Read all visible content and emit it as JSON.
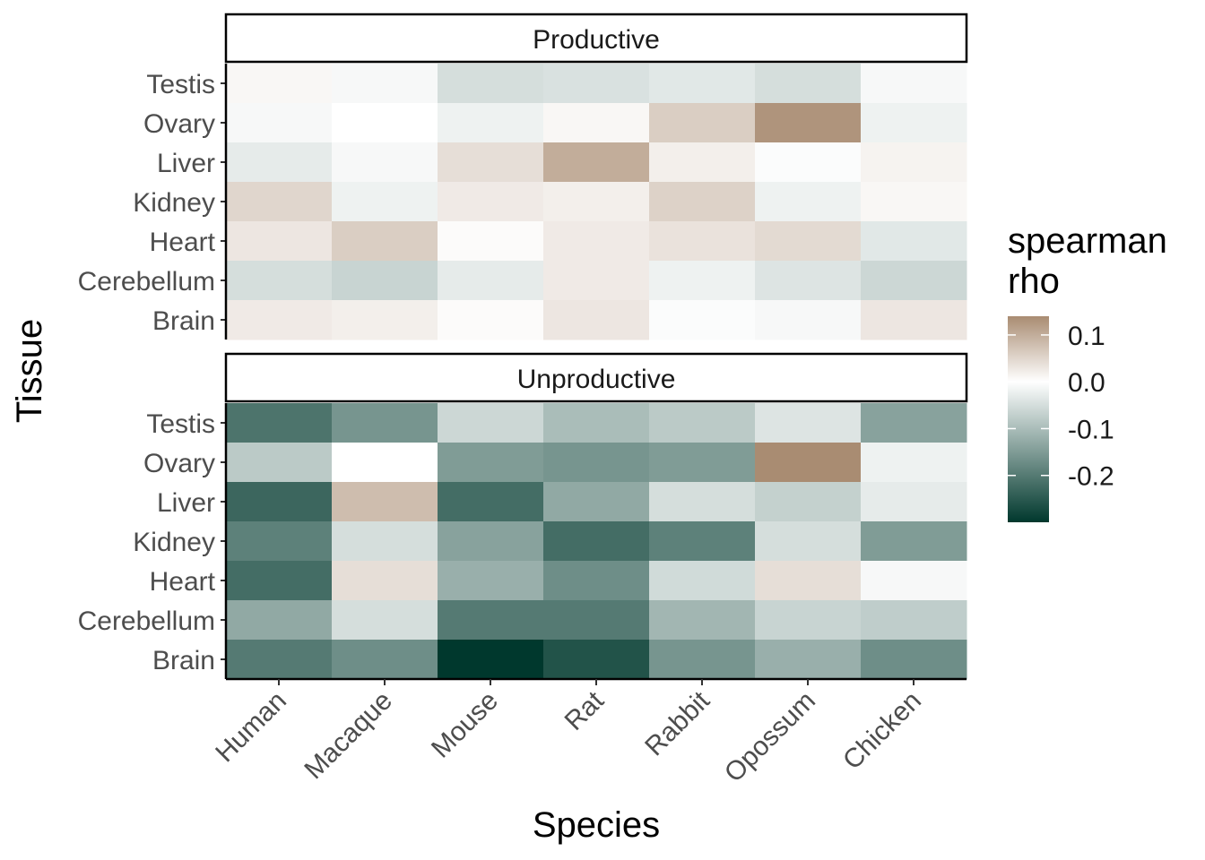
{
  "chart_data": {
    "type": "heatmap",
    "xlabel": "Species",
    "ylabel": "Tissue",
    "categories": [
      "Human",
      "Macaque",
      "Mouse",
      "Rat",
      "Rabbit",
      "Opossum",
      "Chicken"
    ],
    "rows": [
      "Testis",
      "Ovary",
      "Liver",
      "Kidney",
      "Heart",
      "Cerebellum",
      "Brain"
    ],
    "panels": [
      {
        "name": "Productive",
        "values": [
          [
            0.01,
            -0.01,
            -0.05,
            -0.045,
            -0.035,
            -0.05,
            -0.01
          ],
          [
            -0.01,
            0.0,
            -0.02,
            0.01,
            0.06,
            0.13,
            -0.02
          ],
          [
            -0.03,
            -0.01,
            0.04,
            0.1,
            0.02,
            -0.005,
            0.015
          ],
          [
            0.05,
            -0.02,
            0.025,
            0.02,
            0.055,
            -0.02,
            0.01
          ],
          [
            0.03,
            0.06,
            0.005,
            0.025,
            0.035,
            0.045,
            -0.035
          ],
          [
            -0.05,
            -0.065,
            -0.03,
            0.025,
            -0.02,
            -0.04,
            -0.06
          ],
          [
            0.025,
            0.02,
            0.005,
            0.03,
            -0.005,
            -0.01,
            0.03
          ]
        ]
      },
      {
        "name": "Unproductive",
        "values": [
          [
            -0.21,
            -0.16,
            -0.06,
            -0.1,
            -0.08,
            -0.04,
            -0.14
          ],
          [
            -0.08,
            0.0,
            -0.15,
            -0.16,
            -0.15,
            0.14,
            -0.02
          ],
          [
            -0.23,
            0.08,
            -0.22,
            -0.13,
            -0.05,
            -0.07,
            -0.03
          ],
          [
            -0.19,
            -0.05,
            -0.14,
            -0.22,
            -0.19,
            -0.05,
            -0.15
          ],
          [
            -0.22,
            0.04,
            -0.12,
            -0.17,
            -0.055,
            0.04,
            -0.01
          ],
          [
            -0.13,
            -0.05,
            -0.2,
            -0.2,
            -0.11,
            -0.065,
            -0.075
          ],
          [
            -0.2,
            -0.17,
            -0.3,
            -0.26,
            -0.16,
            -0.12,
            -0.17
          ]
        ]
      }
    ],
    "legend": {
      "title_lines": [
        "spearman",
        "rho"
      ],
      "placement": "right",
      "ticks": [
        "0.1",
        "0.0",
        "-0.1",
        "-0.2"
      ],
      "tick_values": [
        0.1,
        0.0,
        -0.1,
        -0.2
      ],
      "range": [
        -0.3,
        0.14
      ],
      "colors": {
        "low": "#00382d",
        "mid": "#ffffff",
        "high": "#a98c72"
      }
    }
  }
}
